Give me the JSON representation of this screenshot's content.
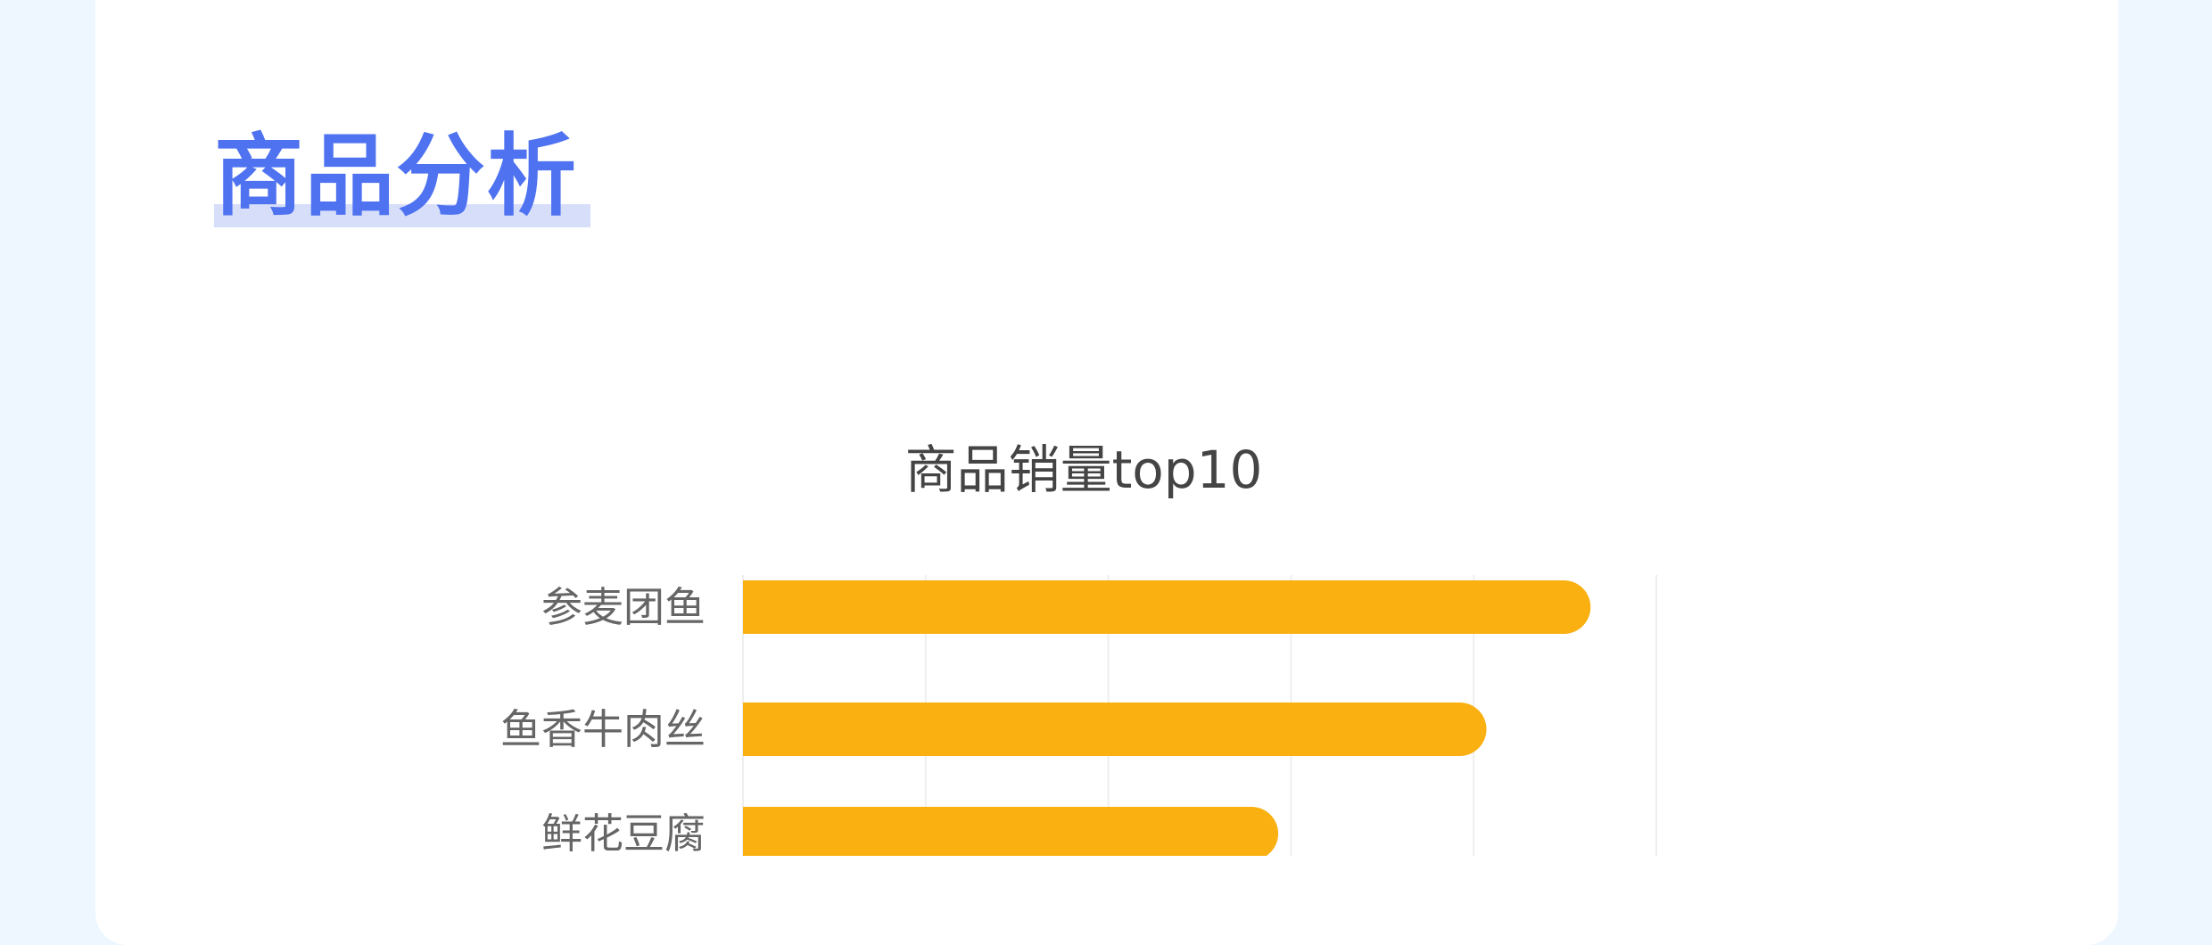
{
  "section": {
    "title": "商品分析"
  },
  "chart_data": {
    "type": "bar",
    "orientation": "horizontal",
    "title": "商品销量top10",
    "categories": [
      "参麦团鱼",
      "鱼香牛肉丝",
      "鲜花豆腐"
    ],
    "values": [
      4.64,
      4.07,
      2.93
    ],
    "xlim": [
      0,
      5
    ],
    "xlabel": "",
    "ylabel": "",
    "grid": true,
    "bar_color": "#f9b010",
    "note_values": "x-axis tick labels not visible; values expressed in gridline intervals"
  },
  "colors": {
    "background": "#eef7ff",
    "accent": "#4e72f0",
    "bar": "#f9b010"
  }
}
